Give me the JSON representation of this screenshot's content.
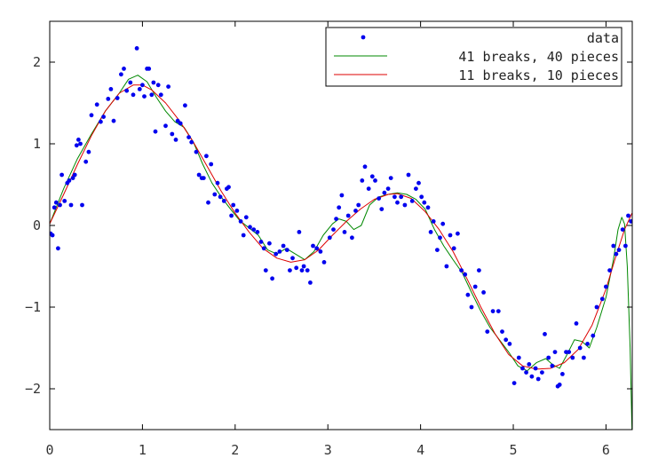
{
  "chart_data": {
    "type": "line",
    "title": "",
    "xlabel": "",
    "ylabel": "",
    "xlim": [
      0,
      6.2832
    ],
    "ylim": [
      -2.5,
      2.5
    ],
    "xticks": [
      0,
      1,
      2,
      3,
      4,
      5,
      6
    ],
    "yticks": [
      -2,
      -1,
      0,
      1,
      2
    ],
    "grid": false,
    "legend_position": "top-right",
    "series": [
      {
        "name": "data",
        "kind": "scatter",
        "color": "#0000ee",
        "points": [
          [
            0.01,
            -0.1
          ],
          [
            0.03,
            -0.12
          ],
          [
            0.05,
            0.22
          ],
          [
            0.07,
            0.28
          ],
          [
            0.09,
            -0.28
          ],
          [
            0.11,
            0.25
          ],
          [
            0.13,
            0.62
          ],
          [
            0.16,
            0.3
          ],
          [
            0.19,
            0.52
          ],
          [
            0.21,
            0.55
          ],
          [
            0.23,
            0.25
          ],
          [
            0.25,
            0.58
          ],
          [
            0.27,
            0.62
          ],
          [
            0.29,
            0.98
          ],
          [
            0.31,
            1.05
          ],
          [
            0.33,
            1.0
          ],
          [
            0.35,
            0.25
          ],
          [
            0.39,
            0.78
          ],
          [
            0.42,
            0.9
          ],
          [
            0.45,
            1.35
          ],
          [
            0.51,
            1.48
          ],
          [
            0.55,
            1.27
          ],
          [
            0.58,
            1.33
          ],
          [
            0.63,
            1.55
          ],
          [
            0.66,
            1.67
          ],
          [
            0.69,
            1.28
          ],
          [
            0.73,
            1.56
          ],
          [
            0.77,
            1.85
          ],
          [
            0.8,
            1.92
          ],
          [
            0.83,
            1.65
          ],
          [
            0.87,
            1.75
          ],
          [
            0.9,
            1.6
          ],
          [
            0.94,
            2.17
          ],
          [
            0.97,
            1.67
          ],
          [
            1.0,
            1.72
          ],
          [
            1.02,
            1.58
          ],
          [
            1.05,
            1.92
          ],
          [
            1.07,
            1.92
          ],
          [
            1.1,
            1.6
          ],
          [
            1.12,
            1.75
          ],
          [
            1.14,
            1.15
          ],
          [
            1.17,
            1.72
          ],
          [
            1.2,
            1.6
          ],
          [
            1.25,
            1.22
          ],
          [
            1.28,
            1.7
          ],
          [
            1.32,
            1.12
          ],
          [
            1.36,
            1.05
          ],
          [
            1.38,
            1.28
          ],
          [
            1.41,
            1.25
          ],
          [
            1.46,
            1.47
          ],
          [
            1.5,
            1.08
          ],
          [
            1.53,
            1.02
          ],
          [
            1.58,
            0.9
          ],
          [
            1.61,
            0.62
          ],
          [
            1.64,
            0.58
          ],
          [
            1.66,
            0.58
          ],
          [
            1.69,
            0.85
          ],
          [
            1.71,
            0.28
          ],
          [
            1.74,
            0.75
          ],
          [
            1.78,
            0.38
          ],
          [
            1.81,
            0.52
          ],
          [
            1.84,
            0.35
          ],
          [
            1.88,
            0.3
          ],
          [
            1.91,
            0.45
          ],
          [
            1.93,
            0.47
          ],
          [
            1.96,
            0.12
          ],
          [
            1.98,
            0.25
          ],
          [
            2.02,
            0.18
          ],
          [
            2.06,
            0.05
          ],
          [
            2.09,
            -0.12
          ],
          [
            2.12,
            0.1
          ],
          [
            2.16,
            -0.02
          ],
          [
            2.2,
            -0.05
          ],
          [
            2.24,
            -0.08
          ],
          [
            2.28,
            -0.2
          ],
          [
            2.31,
            -0.28
          ],
          [
            2.33,
            -0.55
          ],
          [
            2.37,
            -0.22
          ],
          [
            2.4,
            -0.65
          ],
          [
            2.44,
            -0.35
          ],
          [
            2.48,
            -0.32
          ],
          [
            2.52,
            -0.25
          ],
          [
            2.56,
            -0.3
          ],
          [
            2.59,
            -0.55
          ],
          [
            2.62,
            -0.4
          ],
          [
            2.66,
            -0.52
          ],
          [
            2.69,
            -0.08
          ],
          [
            2.72,
            -0.55
          ],
          [
            2.74,
            -0.5
          ],
          [
            2.78,
            -0.55
          ],
          [
            2.81,
            -0.7
          ],
          [
            2.84,
            -0.25
          ],
          [
            2.88,
            -0.28
          ],
          [
            2.92,
            -0.32
          ],
          [
            2.96,
            -0.45
          ],
          [
            3.02,
            -0.15
          ],
          [
            3.06,
            -0.05
          ],
          [
            3.09,
            0.08
          ],
          [
            3.12,
            0.22
          ],
          [
            3.15,
            0.37
          ],
          [
            3.18,
            -0.08
          ],
          [
            3.22,
            0.12
          ],
          [
            3.26,
            -0.15
          ],
          [
            3.3,
            0.18
          ],
          [
            3.33,
            0.25
          ],
          [
            3.37,
            0.55
          ],
          [
            3.4,
            0.72
          ],
          [
            3.44,
            0.45
          ],
          [
            3.48,
            0.6
          ],
          [
            3.51,
            0.55
          ],
          [
            3.55,
            0.33
          ],
          [
            3.58,
            0.2
          ],
          [
            3.61,
            0.4
          ],
          [
            3.65,
            0.45
          ],
          [
            3.68,
            0.58
          ],
          [
            3.72,
            0.35
          ],
          [
            3.75,
            0.28
          ],
          [
            3.79,
            0.35
          ],
          [
            3.83,
            0.25
          ],
          [
            3.87,
            0.62
          ],
          [
            3.91,
            0.3
          ],
          [
            3.95,
            0.45
          ],
          [
            3.98,
            0.52
          ],
          [
            4.01,
            0.35
          ],
          [
            4.04,
            0.28
          ],
          [
            4.08,
            0.22
          ],
          [
            4.11,
            -0.08
          ],
          [
            4.14,
            0.05
          ],
          [
            4.18,
            -0.3
          ],
          [
            4.21,
            -0.15
          ],
          [
            4.24,
            0.02
          ],
          [
            4.28,
            -0.5
          ],
          [
            4.32,
            -0.12
          ],
          [
            4.36,
            -0.28
          ],
          [
            4.4,
            -0.1
          ],
          [
            4.44,
            -0.55
          ],
          [
            4.48,
            -0.6
          ],
          [
            4.51,
            -0.85
          ],
          [
            4.55,
            -1.0
          ],
          [
            4.59,
            -0.75
          ],
          [
            4.63,
            -0.55
          ],
          [
            4.68,
            -0.82
          ],
          [
            4.72,
            -1.3
          ],
          [
            4.78,
            -1.05
          ],
          [
            4.84,
            -1.05
          ],
          [
            4.88,
            -1.3
          ],
          [
            4.92,
            -1.4
          ],
          [
            4.96,
            -1.45
          ],
          [
            5.01,
            -1.93
          ],
          [
            5.06,
            -1.62
          ],
          [
            5.1,
            -1.75
          ],
          [
            5.14,
            -1.8
          ],
          [
            5.17,
            -1.7
          ],
          [
            5.2,
            -1.85
          ],
          [
            5.24,
            -1.75
          ],
          [
            5.27,
            -1.88
          ],
          [
            5.31,
            -1.8
          ],
          [
            5.34,
            -1.33
          ],
          [
            5.38,
            -1.62
          ],
          [
            5.42,
            -1.72
          ],
          [
            5.45,
            -1.55
          ],
          [
            5.48,
            -1.97
          ],
          [
            5.5,
            -1.95
          ],
          [
            5.53,
            -1.82
          ],
          [
            5.57,
            -1.55
          ],
          [
            5.6,
            -1.55
          ],
          [
            5.64,
            -1.62
          ],
          [
            5.68,
            -1.2
          ],
          [
            5.72,
            -1.5
          ],
          [
            5.76,
            -1.62
          ],
          [
            5.8,
            -1.45
          ],
          [
            5.86,
            -1.35
          ],
          [
            5.9,
            -1.0
          ],
          [
            5.96,
            -0.9
          ],
          [
            6.0,
            -0.75
          ],
          [
            6.04,
            -0.55
          ],
          [
            6.08,
            -0.25
          ],
          [
            6.11,
            -0.35
          ],
          [
            6.14,
            -0.3
          ],
          [
            6.18,
            -0.05
          ],
          [
            6.21,
            -0.25
          ],
          [
            6.24,
            0.12
          ],
          [
            6.27,
            0.05
          ]
        ]
      },
      {
        "name": "41 breaks, 40 pieces",
        "kind": "line",
        "color": "#008800",
        "points": [
          [
            0.0,
            0.02
          ],
          [
            0.15,
            0.45
          ],
          [
            0.3,
            0.82
          ],
          [
            0.45,
            1.12
          ],
          [
            0.6,
            1.4
          ],
          [
            0.75,
            1.62
          ],
          [
            0.85,
            1.79
          ],
          [
            0.95,
            1.84
          ],
          [
            1.05,
            1.76
          ],
          [
            1.15,
            1.57
          ],
          [
            1.25,
            1.4
          ],
          [
            1.35,
            1.27
          ],
          [
            1.45,
            1.2
          ],
          [
            1.55,
            1.02
          ],
          [
            1.65,
            0.75
          ],
          [
            1.75,
            0.52
          ],
          [
            1.85,
            0.35
          ],
          [
            1.95,
            0.2
          ],
          [
            2.05,
            0.06
          ],
          [
            2.15,
            -0.03
          ],
          [
            2.25,
            -0.12
          ],
          [
            2.35,
            -0.3
          ],
          [
            2.45,
            -0.35
          ],
          [
            2.55,
            -0.28
          ],
          [
            2.65,
            -0.35
          ],
          [
            2.75,
            -0.42
          ],
          [
            2.85,
            -0.32
          ],
          [
            2.95,
            -0.12
          ],
          [
            3.05,
            0.02
          ],
          [
            3.12,
            0.08
          ],
          [
            3.2,
            0.05
          ],
          [
            3.28,
            -0.05
          ],
          [
            3.36,
            0.0
          ],
          [
            3.45,
            0.25
          ],
          [
            3.55,
            0.35
          ],
          [
            3.65,
            0.38
          ],
          [
            3.75,
            0.4
          ],
          [
            3.85,
            0.38
          ],
          [
            3.95,
            0.32
          ],
          [
            4.05,
            0.2
          ],
          [
            4.15,
            -0.05
          ],
          [
            4.25,
            -0.25
          ],
          [
            4.35,
            -0.42
          ],
          [
            4.45,
            -0.58
          ],
          [
            4.55,
            -0.82
          ],
          [
            4.65,
            -1.05
          ],
          [
            4.75,
            -1.25
          ],
          [
            4.85,
            -1.4
          ],
          [
            4.95,
            -1.55
          ],
          [
            5.05,
            -1.72
          ],
          [
            5.15,
            -1.78
          ],
          [
            5.25,
            -1.68
          ],
          [
            5.35,
            -1.63
          ],
          [
            5.42,
            -1.7
          ],
          [
            5.5,
            -1.75
          ],
          [
            5.58,
            -1.58
          ],
          [
            5.66,
            -1.4
          ],
          [
            5.74,
            -1.42
          ],
          [
            5.82,
            -1.5
          ],
          [
            5.9,
            -1.25
          ],
          [
            6.0,
            -0.88
          ],
          [
            6.08,
            -0.42
          ],
          [
            6.13,
            -0.05
          ],
          [
            6.17,
            0.1
          ],
          [
            6.2,
            0.02
          ],
          [
            6.23,
            -0.5
          ],
          [
            6.26,
            -1.5
          ],
          [
            6.28,
            -2.5
          ]
        ]
      },
      {
        "name": "11 breaks, 10 pieces",
        "kind": "line",
        "color": "#dd0000",
        "points": [
          [
            0.0,
            0.02
          ],
          [
            0.15,
            0.38
          ],
          [
            0.3,
            0.75
          ],
          [
            0.45,
            1.1
          ],
          [
            0.6,
            1.4
          ],
          [
            0.75,
            1.62
          ],
          [
            0.9,
            1.72
          ],
          [
            1.0,
            1.72
          ],
          [
            1.1,
            1.66
          ],
          [
            1.25,
            1.5
          ],
          [
            1.4,
            1.28
          ],
          [
            1.55,
            1.02
          ],
          [
            1.7,
            0.72
          ],
          [
            1.85,
            0.42
          ],
          [
            2.0,
            0.15
          ],
          [
            2.15,
            -0.08
          ],
          [
            2.3,
            -0.28
          ],
          [
            2.45,
            -0.4
          ],
          [
            2.6,
            -0.45
          ],
          [
            2.75,
            -0.42
          ],
          [
            2.9,
            -0.3
          ],
          [
            3.05,
            -0.12
          ],
          [
            3.2,
            0.05
          ],
          [
            3.35,
            0.2
          ],
          [
            3.5,
            0.32
          ],
          [
            3.65,
            0.38
          ],
          [
            3.75,
            0.39
          ],
          [
            3.9,
            0.33
          ],
          [
            4.05,
            0.17
          ],
          [
            4.2,
            -0.05
          ],
          [
            4.35,
            -0.32
          ],
          [
            4.5,
            -0.65
          ],
          [
            4.65,
            -1.0
          ],
          [
            4.8,
            -1.32
          ],
          [
            4.95,
            -1.58
          ],
          [
            5.1,
            -1.72
          ],
          [
            5.25,
            -1.76
          ],
          [
            5.4,
            -1.75
          ],
          [
            5.55,
            -1.68
          ],
          [
            5.7,
            -1.52
          ],
          [
            5.85,
            -1.22
          ],
          [
            6.0,
            -0.78
          ],
          [
            6.1,
            -0.4
          ],
          [
            6.2,
            -0.05
          ],
          [
            6.28,
            0.15
          ]
        ]
      }
    ]
  }
}
